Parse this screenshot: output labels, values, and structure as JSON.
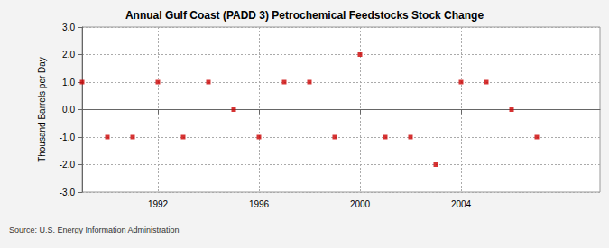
{
  "chart_data": {
    "type": "scatter",
    "title": "Annual Gulf Coast (PADD 3) Petrochemical Feedstocks Stock Change",
    "y_label": "Thousand Barrels per Day",
    "source": "Source: U.S. Energy Information Administration",
    "x": [
      1989,
      1990,
      1991,
      1992,
      1993,
      1994,
      1995,
      1996,
      1997,
      1998,
      1999,
      2000,
      2001,
      2002,
      2003,
      2004,
      2005,
      2006,
      2007
    ],
    "values": [
      1,
      -1,
      -1,
      1,
      -1,
      1,
      0,
      -1,
      1,
      1,
      -1,
      2,
      -1,
      -1,
      -2,
      1,
      1,
      0,
      -1
    ],
    "color": "#cc0000",
    "marker": "square",
    "xlim": [
      1989,
      2009.5
    ],
    "xticks": [
      1992,
      1996,
      2000,
      2004
    ],
    "ylim": [
      -3,
      3
    ],
    "yticks": [
      {
        "value": -3,
        "label": "-3.0"
      },
      {
        "value": -2,
        "label": "-2.0"
      },
      {
        "value": -1,
        "label": "-1.0"
      },
      {
        "value": 0,
        "label": "0.0"
      },
      {
        "value": 1,
        "label": "1.0"
      },
      {
        "value": 2,
        "label": "2.0"
      },
      {
        "value": 3,
        "label": "3.0"
      }
    ],
    "grid": true
  }
}
